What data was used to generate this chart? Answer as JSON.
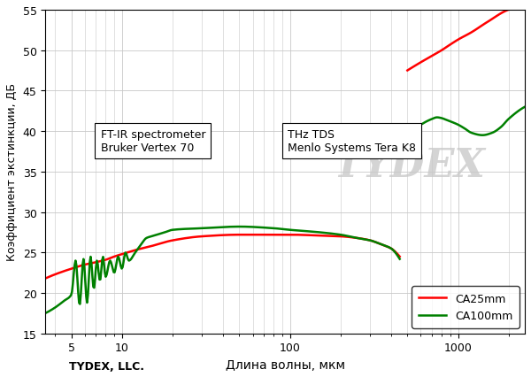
{
  "title": "",
  "ylabel": "Коэффициент экстинкции, ДБ",
  "xlabel": "Длина волны, мкм",
  "xlim": [
    3.5,
    2500
  ],
  "ylim": [
    15,
    55
  ],
  "yticks": [
    15,
    20,
    25,
    30,
    35,
    40,
    45,
    50,
    55
  ],
  "xticks": [
    5,
    10,
    100,
    1000
  ],
  "line1_color": "#ff0000",
  "line2_color": "#008000",
  "label1": "CA25mm",
  "label2": "CA100mm",
  "annotation1": "FT-IR spectrometer\nBruker Vertex 70",
  "annotation2": "THz TDS\nMenlo Systems Tera K8",
  "tydex_text": "TYDEX, LLC.",
  "background_color": "#ffffff",
  "grid_color": "#c8c8c8",
  "watermark_color": "#d4d4d4",
  "ca25mm_ftir_x": [
    3.5,
    4,
    5,
    6,
    7,
    8,
    9,
    10,
    12,
    15,
    20,
    30,
    50,
    80,
    100,
    150,
    200,
    250,
    300,
    350,
    400,
    450
  ],
  "ca25mm_ftir_y": [
    21.8,
    22.3,
    23.0,
    23.5,
    23.8,
    24.1,
    24.5,
    24.8,
    25.3,
    25.8,
    26.5,
    27.0,
    27.2,
    27.2,
    27.2,
    27.1,
    27.0,
    26.8,
    26.5,
    26.0,
    25.5,
    24.5
  ],
  "ca25mm_thz_x": [
    450,
    500,
    600,
    700,
    800,
    900,
    1000,
    1200,
    1500,
    2000,
    2500
  ],
  "ca25mm_thz_y": [
    23.5,
    47.5,
    48.5,
    49.3,
    50.0,
    50.7,
    51.3,
    52.2,
    53.5,
    55.0,
    55.5
  ],
  "ca100mm_ftir_x": [
    3.5,
    4.0,
    4.5,
    5.0,
    5.3,
    5.6,
    5.9,
    6.2,
    6.5,
    6.8,
    7.1,
    7.4,
    7.7,
    8.0,
    8.5,
    9.0,
    9.5,
    10.0,
    10.5,
    11.0,
    12.0,
    13.0,
    14.0,
    15.0,
    18.0,
    20.0,
    30.0,
    50.0,
    80.0,
    100.0,
    150.0,
    200.0,
    250.0,
    300.0,
    350.0,
    400.0,
    450.0
  ],
  "ca100mm_ftir_y": [
    17.5,
    18.2,
    19.0,
    19.8,
    24.0,
    18.5,
    24.2,
    18.8,
    24.5,
    20.5,
    24.0,
    21.5,
    24.5,
    22.0,
    24.0,
    22.5,
    24.5,
    23.0,
    25.0,
    24.0,
    25.0,
    26.0,
    26.8,
    27.0,
    27.5,
    27.8,
    28.0,
    28.2,
    28.0,
    27.8,
    27.5,
    27.2,
    26.8,
    26.5,
    26.0,
    25.5,
    24.2
  ],
  "ca100mm_thz_x": [
    450,
    500,
    550,
    600,
    650,
    700,
    750,
    800,
    850,
    900,
    1000,
    1100,
    1200,
    1400,
    1600,
    1800,
    2000,
    2500
  ],
  "ca100mm_thz_y": [
    23.0,
    40.0,
    40.5,
    40.8,
    41.2,
    41.5,
    41.7,
    41.6,
    41.4,
    41.2,
    40.8,
    40.3,
    39.8,
    39.5,
    39.8,
    40.5,
    41.5,
    43.0
  ]
}
